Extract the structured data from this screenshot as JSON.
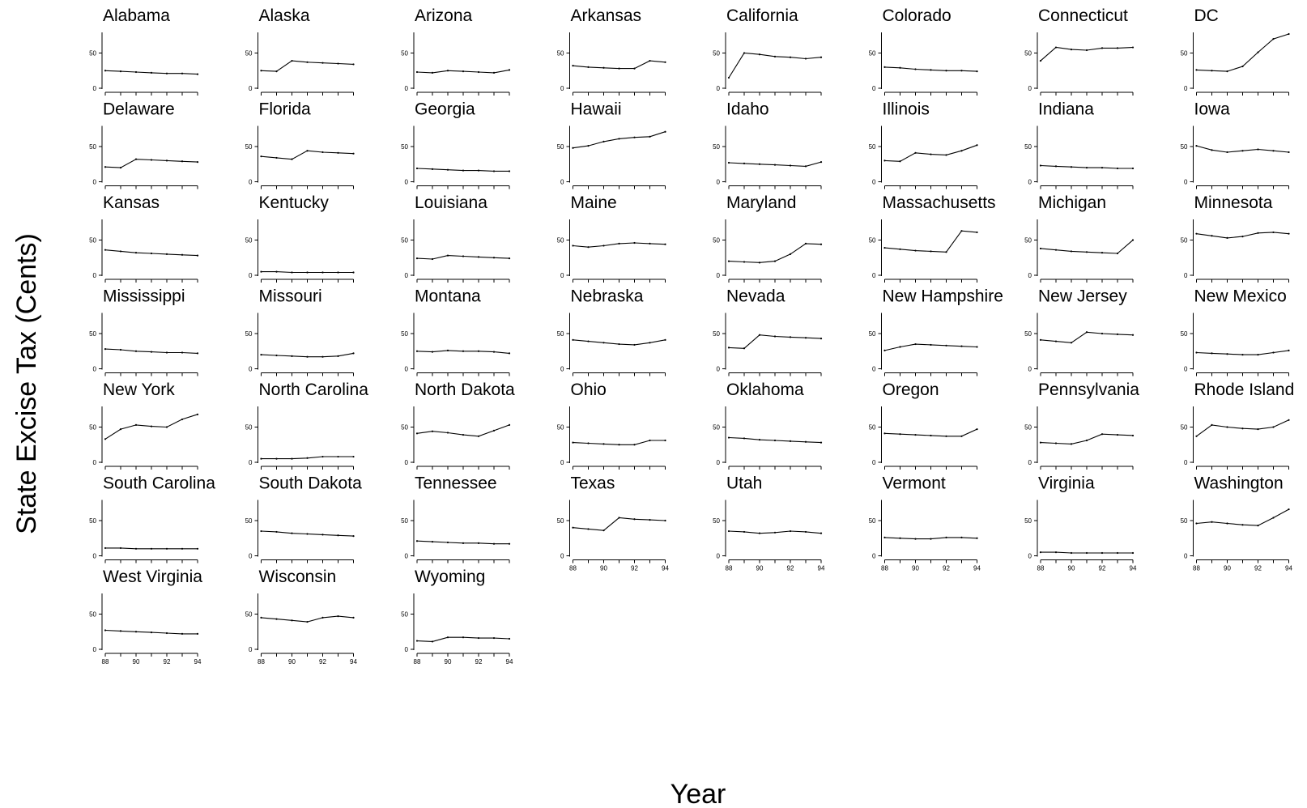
{
  "chart_data": {
    "type": "line",
    "layout": "small-multiples",
    "ylabel": "State Excise Tax (Cents)",
    "xlabel": "Year",
    "x": [
      88,
      89,
      90,
      91,
      92,
      93,
      94
    ],
    "xticks": [
      "88",
      "90",
      "92",
      "94"
    ],
    "xtick_values": [
      88,
      90,
      92,
      94
    ],
    "yticks": [
      "0",
      "50"
    ],
    "ytick_values": [
      0,
      50
    ],
    "ylim": [
      0,
      80
    ],
    "xlim": [
      88,
      94
    ],
    "grid": false,
    "legend": "none",
    "series": [
      {
        "name": "Alabama",
        "values": [
          25,
          24,
          23,
          22,
          21,
          21,
          20
        ]
      },
      {
        "name": "Alaska",
        "values": [
          25,
          24,
          39,
          37,
          36,
          35,
          34
        ]
      },
      {
        "name": "Arizona",
        "values": [
          23,
          22,
          25,
          24,
          23,
          22,
          26
        ]
      },
      {
        "name": "Arkansas",
        "values": [
          32,
          30,
          29,
          28,
          28,
          39,
          37
        ]
      },
      {
        "name": "California",
        "values": [
          15,
          50,
          48,
          45,
          44,
          42,
          44
        ]
      },
      {
        "name": "Colorado",
        "values": [
          30,
          29,
          27,
          26,
          25,
          25,
          24
        ]
      },
      {
        "name": "Connecticut",
        "values": [
          39,
          58,
          55,
          54,
          57,
          57,
          58
        ]
      },
      {
        "name": "DC",
        "values": [
          26,
          25,
          24,
          31,
          51,
          70,
          77
        ]
      },
      {
        "name": "Delaware",
        "values": [
          21,
          20,
          32,
          31,
          30,
          29,
          28
        ]
      },
      {
        "name": "Florida",
        "values": [
          36,
          34,
          32,
          44,
          42,
          41,
          40
        ]
      },
      {
        "name": "Georgia",
        "values": [
          19,
          18,
          17,
          16,
          16,
          15,
          15
        ]
      },
      {
        "name": "Hawaii",
        "values": [
          48,
          51,
          57,
          61,
          63,
          64,
          71
        ]
      },
      {
        "name": "Idaho",
        "values": [
          27,
          26,
          25,
          24,
          23,
          22,
          28
        ]
      },
      {
        "name": "Illinois",
        "values": [
          30,
          29,
          41,
          39,
          38,
          44,
          52
        ]
      },
      {
        "name": "Indiana",
        "values": [
          23,
          22,
          21,
          20,
          20,
          19,
          19
        ]
      },
      {
        "name": "Iowa",
        "values": [
          51,
          45,
          42,
          44,
          46,
          44,
          42
        ]
      },
      {
        "name": "Kansas",
        "values": [
          36,
          34,
          32,
          31,
          30,
          29,
          28
        ]
      },
      {
        "name": "Kentucky",
        "values": [
          5,
          5,
          4,
          4,
          4,
          4,
          4
        ]
      },
      {
        "name": "Louisiana",
        "values": [
          24,
          23,
          28,
          27,
          26,
          25,
          24
        ]
      },
      {
        "name": "Maine",
        "values": [
          42,
          40,
          42,
          45,
          46,
          45,
          44
        ]
      },
      {
        "name": "Maryland",
        "values": [
          20,
          19,
          18,
          20,
          30,
          45,
          44
        ]
      },
      {
        "name": "Massachusetts",
        "values": [
          39,
          37,
          35,
          34,
          33,
          63,
          61
        ]
      },
      {
        "name": "Michigan",
        "values": [
          38,
          36,
          34,
          33,
          32,
          31,
          50
        ]
      },
      {
        "name": "Minnesota",
        "values": [
          59,
          56,
          53,
          55,
          60,
          61,
          59
        ]
      },
      {
        "name": "Mississippi",
        "values": [
          28,
          27,
          25,
          24,
          23,
          23,
          22
        ]
      },
      {
        "name": "Missouri",
        "values": [
          20,
          19,
          18,
          17,
          17,
          18,
          22
        ]
      },
      {
        "name": "Montana",
        "values": [
          25,
          24,
          26,
          25,
          25,
          24,
          22
        ]
      },
      {
        "name": "Nebraska",
        "values": [
          41,
          39,
          37,
          35,
          34,
          37,
          41
        ]
      },
      {
        "name": "Nevada",
        "values": [
          30,
          29,
          48,
          46,
          45,
          44,
          43
        ]
      },
      {
        "name": "New Hampshire",
        "values": [
          26,
          31,
          35,
          34,
          33,
          32,
          31
        ]
      },
      {
        "name": "New Jersey",
        "values": [
          41,
          39,
          37,
          52,
          50,
          49,
          48
        ]
      },
      {
        "name": "New Mexico",
        "values": [
          23,
          22,
          21,
          20,
          20,
          23,
          26
        ]
      },
      {
        "name": "New York",
        "values": [
          33,
          47,
          53,
          51,
          50,
          61,
          68
        ]
      },
      {
        "name": "North Carolina",
        "values": [
          5,
          5,
          5,
          6,
          8,
          8,
          8
        ]
      },
      {
        "name": "North Dakota",
        "values": [
          41,
          44,
          42,
          39,
          37,
          45,
          53
        ]
      },
      {
        "name": "Ohio",
        "values": [
          28,
          27,
          26,
          25,
          25,
          31,
          31
        ]
      },
      {
        "name": "Oklahoma",
        "values": [
          35,
          34,
          32,
          31,
          30,
          29,
          28
        ]
      },
      {
        "name": "Oregon",
        "values": [
          41,
          40,
          39,
          38,
          37,
          37,
          47
        ]
      },
      {
        "name": "Pennsylvania",
        "values": [
          28,
          27,
          26,
          31,
          40,
          39,
          38
        ]
      },
      {
        "name": "Rhode Island",
        "values": [
          37,
          53,
          50,
          48,
          47,
          50,
          60
        ]
      },
      {
        "name": "South Carolina",
        "values": [
          11,
          11,
          10,
          10,
          10,
          10,
          10
        ]
      },
      {
        "name": "South Dakota",
        "values": [
          35,
          34,
          32,
          31,
          30,
          29,
          28
        ]
      },
      {
        "name": "Tennessee",
        "values": [
          21,
          20,
          19,
          18,
          18,
          17,
          17
        ]
      },
      {
        "name": "Texas",
        "values": [
          40,
          38,
          36,
          54,
          52,
          51,
          50
        ]
      },
      {
        "name": "Utah",
        "values": [
          35,
          34,
          32,
          33,
          35,
          34,
          32
        ]
      },
      {
        "name": "Vermont",
        "values": [
          26,
          25,
          24,
          24,
          26,
          26,
          25
        ]
      },
      {
        "name": "Virginia",
        "values": [
          5,
          5,
          4,
          4,
          4,
          4,
          4
        ]
      },
      {
        "name": "Washington",
        "values": [
          46,
          48,
          46,
          44,
          43,
          54,
          66
        ]
      },
      {
        "name": "West Virginia",
        "values": [
          27,
          26,
          25,
          24,
          23,
          22,
          22
        ]
      },
      {
        "name": "Wisconsin",
        "values": [
          45,
          43,
          41,
          39,
          45,
          47,
          45
        ]
      },
      {
        "name": "Wyoming",
        "values": [
          12,
          11,
          17,
          17,
          16,
          16,
          15
        ]
      }
    ]
  }
}
